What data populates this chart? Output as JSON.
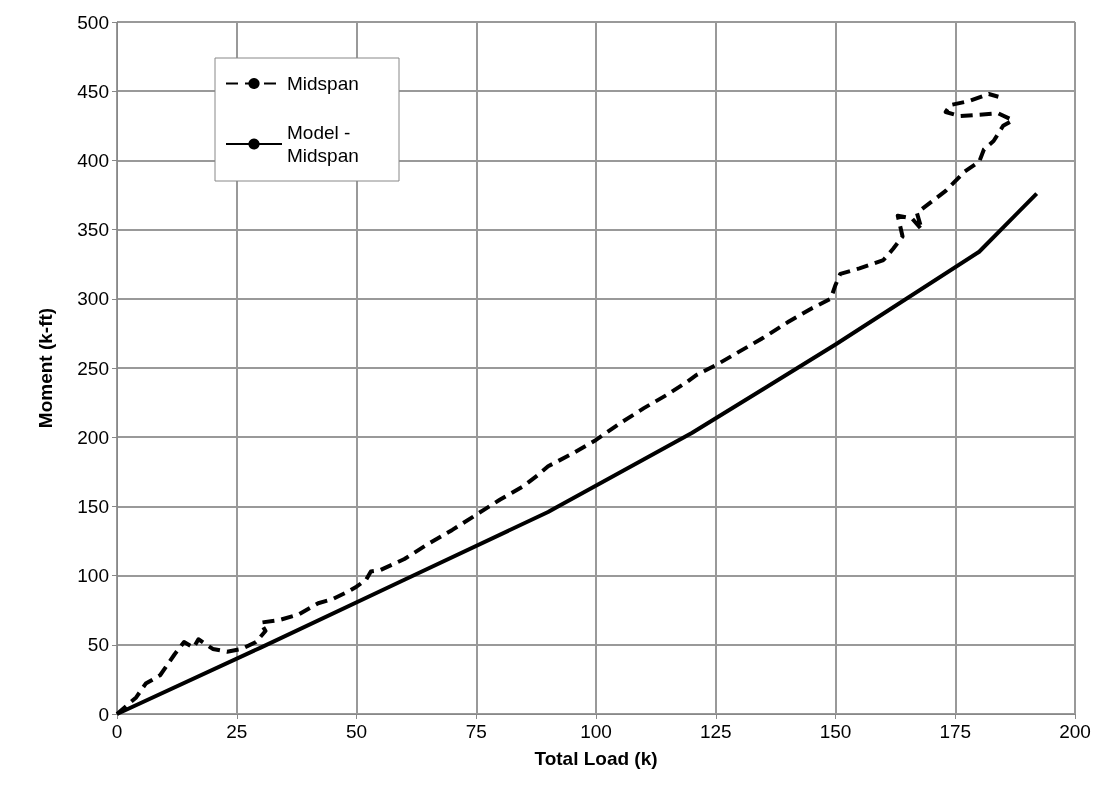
{
  "chart_data": {
    "type": "line",
    "xlabel": "Total Load (k)",
    "ylabel": "Moment (k-ft)",
    "xlim": [
      0,
      200
    ],
    "xticks": [
      0,
      25,
      50,
      75,
      100,
      125,
      150,
      175,
      200
    ],
    "ylim": [
      0,
      500
    ],
    "yticks": [
      0,
      50,
      100,
      150,
      200,
      250,
      300,
      350,
      400,
      450,
      500
    ],
    "grid": true,
    "legend": "top left",
    "marker": "none",
    "series": [
      {
        "name": "Midspan",
        "color": "#000000",
        "line_style": "dashed",
        "x": [
          0,
          2,
          4,
          6,
          9,
          12,
          14,
          16,
          17,
          20,
          23,
          26,
          29,
          31,
          30,
          34,
          38,
          42,
          45,
          48,
          50,
          52,
          53,
          55,
          60,
          65,
          70,
          75,
          80,
          85,
          88,
          90,
          95,
          100,
          105,
          110,
          115,
          119,
          121,
          125,
          130,
          135,
          140,
          145,
          149,
          150,
          151,
          155,
          160,
          162,
          164,
          163,
          166,
          168,
          167,
          170,
          173,
          175,
          177,
          180,
          181,
          183,
          185,
          187,
          184,
          180,
          176,
          173,
          174,
          178,
          182,
          184
        ],
        "values": [
          0,
          6,
          12,
          22,
          28,
          43,
          52,
          48,
          54,
          47,
          45,
          47,
          52,
          60,
          66,
          68,
          72,
          80,
          83,
          88,
          92,
          97,
          103,
          104,
          112,
          123,
          133,
          144,
          155,
          165,
          173,
          179,
          188,
          198,
          210,
          221,
          231,
          240,
          245,
          252,
          262,
          272,
          283,
          293,
          300,
          310,
          318,
          322,
          328,
          336,
          345,
          360,
          358,
          350,
          362,
          370,
          378,
          385,
          392,
          399,
          408,
          414,
          425,
          429,
          434,
          433,
          432,
          435,
          440,
          443,
          448,
          446
        ]
      },
      {
        "name": "Model - Midspan",
        "color": "#000000",
        "line_style": "solid",
        "x": [
          0,
          30,
          60,
          90,
          120,
          150,
          180,
          192
        ],
        "values": [
          0,
          48,
          97,
          146,
          203,
          267,
          334,
          376
        ]
      }
    ]
  }
}
